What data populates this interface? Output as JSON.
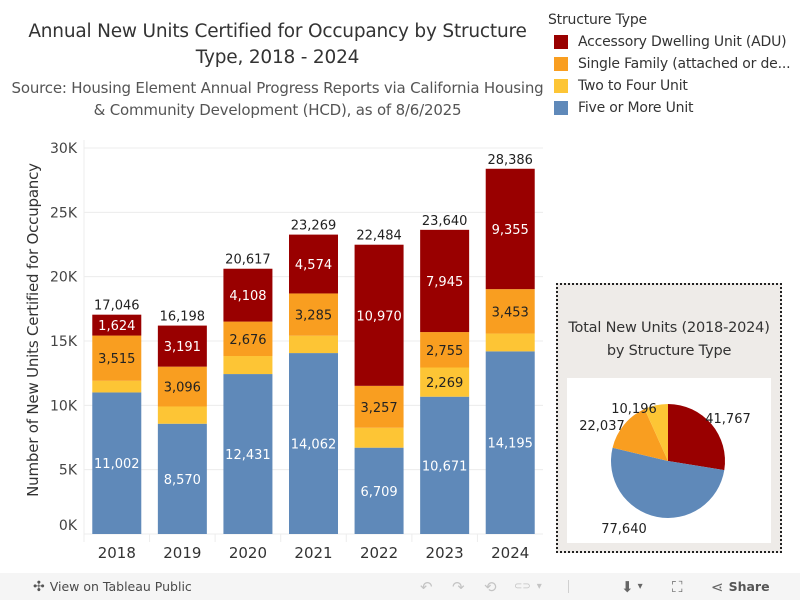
{
  "chart_data": [
    {
      "type": "bar",
      "stacked": true,
      "title": "Annual New Units Certified for Occupancy by Structure Type, 2018 - 2024",
      "subtitle": "Source: Housing Element Annual Progress Reports via California Housing & Community Development (HCD), as of 8/6/2025",
      "xlabel": "",
      "ylabel": "Number of New Units Certified for Occupancy",
      "ylim": [
        0,
        30000
      ],
      "yticks": [
        0,
        5000,
        10000,
        15000,
        20000,
        25000,
        30000
      ],
      "ytick_labels": [
        "0K",
        "5K",
        "10K",
        "15K",
        "20K",
        "25K",
        "30K"
      ],
      "grid": true,
      "categories": [
        "2018",
        "2019",
        "2020",
        "2021",
        "2022",
        "2023",
        "2024"
      ],
      "series": [
        {
          "name": "Five or More Unit",
          "color": "#5f89b9",
          "values": [
            11002,
            8570,
            12431,
            14062,
            6709,
            10671,
            14195
          ],
          "labels": [
            "11,002",
            "8,570",
            "12,431",
            "14,062",
            "6,709",
            "10,671",
            "14,195"
          ]
        },
        {
          "name": "Two to Four Unit",
          "color": "#fdc535",
          "values": [
            905,
            1341,
            1402,
            1348,
            1548,
            2269,
            1383
          ],
          "labels": [
            "",
            "",
            "",
            "",
            "",
            "2,269",
            ""
          ]
        },
        {
          "name": "Single Family (attached or detached)",
          "color": "#f99e20",
          "values": [
            3515,
            3096,
            2676,
            3285,
            3257,
            2755,
            3453
          ],
          "labels": [
            "3,515",
            "3,096",
            "2,676",
            "3,285",
            "3,257",
            "2,755",
            "3,453"
          ]
        },
        {
          "name": "Accessory Dwelling Unit (ADU)",
          "color": "#990000",
          "values": [
            1624,
            3191,
            4108,
            4574,
            10970,
            7945,
            9355
          ],
          "labels": [
            "1,624",
            "3,191",
            "4,108",
            "4,574",
            "10,970",
            "7,945",
            "9,355"
          ]
        }
      ],
      "totals": [
        17046,
        16198,
        20617,
        23269,
        22484,
        23640,
        28386
      ],
      "total_labels": [
        "17,046",
        "16,198",
        "20,617",
        "23,269",
        "22,484",
        "23,640",
        "28,386"
      ]
    },
    {
      "type": "pie",
      "title": "Total New Units (2018-2024) by Structure Type",
      "slices": [
        {
          "name": "Accessory Dwelling Unit (ADU)",
          "value": 41767,
          "label": "41,767",
          "color": "#990000"
        },
        {
          "name": "Five or More Unit",
          "value": 77640,
          "label": "77,640",
          "color": "#5f89b9"
        },
        {
          "name": "Single Family (attached or detached)",
          "value": 22037,
          "label": "22,037",
          "color": "#f99e20"
        },
        {
          "name": "Two to Four Unit",
          "value": 10196,
          "label": "10,196",
          "color": "#fdc535"
        }
      ]
    }
  ],
  "header": {
    "title": "Annual New Units Certified for Occupancy by Structure Type, 2018 - 2024",
    "subtitle": "Source: Housing Element Annual Progress Reports via California Housing & Community Development (HCD), as of 8/6/2025"
  },
  "axis": {
    "y_title": "Number of New Units Certified for Occupancy"
  },
  "legend": {
    "title": "Structure Type",
    "items": [
      {
        "label": "Accessory Dwelling Unit (ADU)",
        "color": "#990000"
      },
      {
        "label": "Single Family (attached or de...",
        "color": "#f99e20"
      },
      {
        "label": "Two to Four Unit",
        "color": "#fdc535"
      },
      {
        "label": "Five or More Unit",
        "color": "#5f89b9"
      }
    ]
  },
  "pie_panel": {
    "title": "Total New Units (2018-2024) by Structure Type"
  },
  "toolbar": {
    "view_on_label": "View on Tableau Public",
    "share_label": "Share",
    "icons": {
      "tableau": "✣",
      "undo": "↶",
      "redo": "↷",
      "revert": "⟲",
      "refresh": "⊂⊃",
      "dropdown": "▾",
      "download": "⬇",
      "fullscreen": "⛶",
      "share": "⋖"
    }
  }
}
